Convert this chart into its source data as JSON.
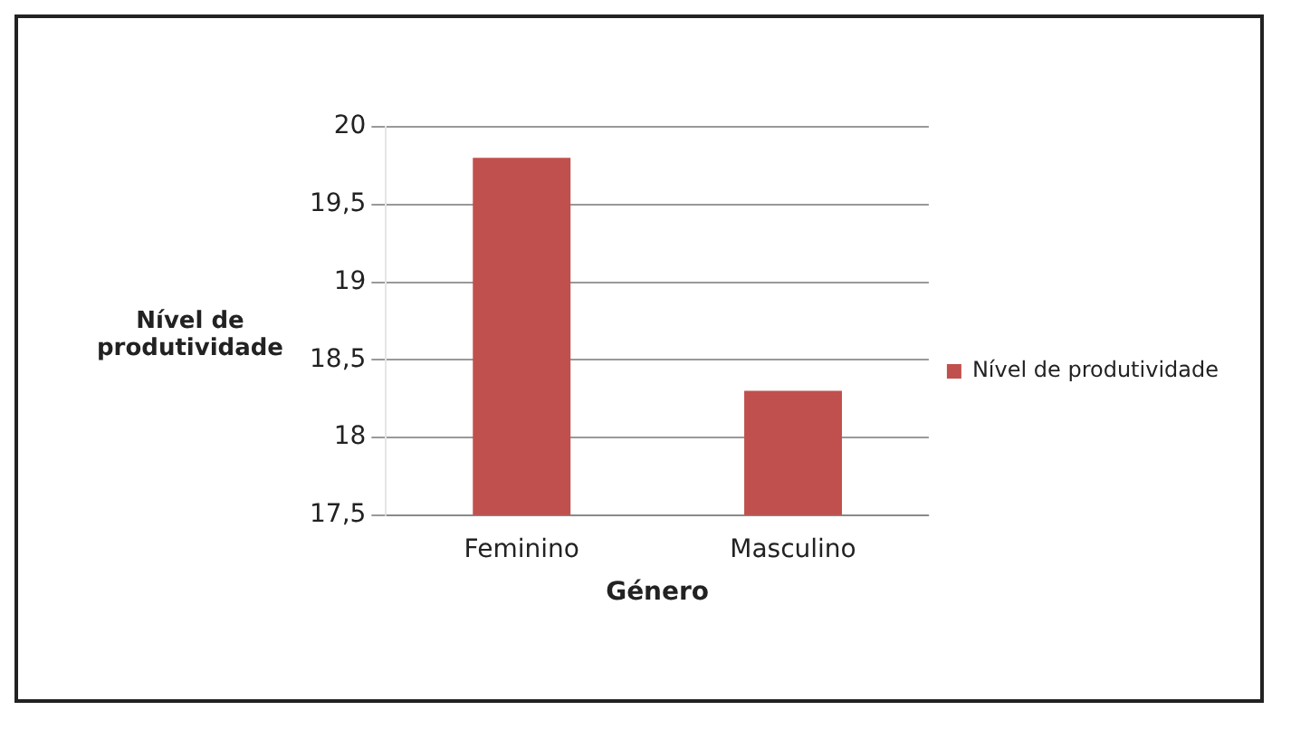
{
  "chart_data": {
    "type": "bar",
    "categories": [
      "Feminino",
      "Masculino"
    ],
    "series": [
      {
        "name": "Nível de produtividade",
        "color": "#c0504d",
        "values": [
          19.8,
          18.3
        ]
      }
    ],
    "xlabel": "Género",
    "ylabel": "Nível de produtividade",
    "ylim": [
      17.5,
      20
    ],
    "yticks": [
      {
        "value": 17.5,
        "label": "17,5"
      },
      18,
      {
        "value": 18.5,
        "label": "18,5"
      },
      19,
      {
        "value": 19.5,
        "label": "19,5"
      },
      20
    ],
    "grid": "y",
    "legend": "right"
  }
}
